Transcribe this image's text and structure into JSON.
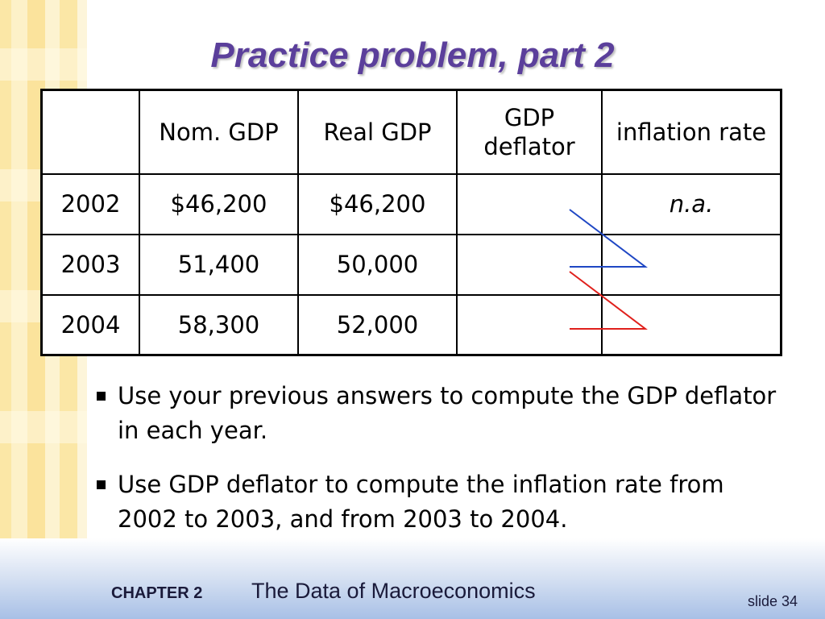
{
  "title": "Practice problem, part 2",
  "table": {
    "headers": [
      "",
      "Nom. GDP",
      "Real GDP",
      "GDP deflator",
      "inflation rate"
    ],
    "rows": [
      [
        "2002",
        "$46,200",
        "$46,200",
        "",
        "n.a."
      ],
      [
        "2003",
        "51,400",
        "50,000",
        "",
        ""
      ],
      [
        "2004",
        "58,300",
        "52,000",
        "",
        ""
      ]
    ]
  },
  "arrow_colors": {
    "first": "#1f47c4",
    "second": "#e0201c"
  },
  "bullets": [
    "Use your previous answers to compute the GDP deflator in each year.",
    "Use GDP deflator to compute the inflation rate from 2002 to 2003, and from 2003 to 2004."
  ],
  "footer": {
    "chapter": "CHAPTER 2",
    "book_title": "The Data of Macroeconomics",
    "slide": "slide 34"
  }
}
